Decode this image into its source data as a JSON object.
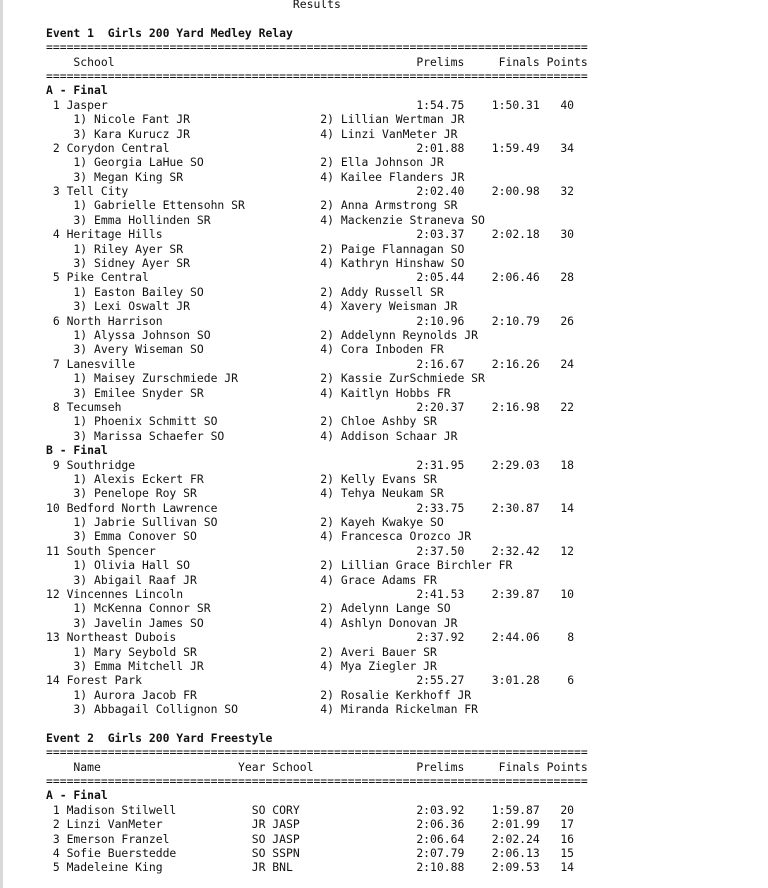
{
  "title": "Results",
  "separator": "===============================================================================",
  "events": [
    {
      "title": "Event 1  Girls 200 Yard Medley Relay",
      "type": "relay",
      "columns": {
        "school": "School",
        "prelims": "Prelims",
        "finals": "Finals",
        "points": "Points"
      },
      "sections": [
        {
          "label": "A - Final",
          "entries": [
            {
              "place": "1",
              "team": "Jasper",
              "prelims": "1:54.75",
              "finals": "1:50.31",
              "points": "40",
              "swimmers": [
                "1) Nicole Fant JR",
                "2) Lillian Wertman JR",
                "3) Kara Kurucz JR",
                "4) Linzi VanMeter JR"
              ]
            },
            {
              "place": "2",
              "team": "Corydon Central",
              "prelims": "2:01.88",
              "finals": "1:59.49",
              "points": "34",
              "swimmers": [
                "1) Georgia LaHue SO",
                "2) Ella Johnson JR",
                "3) Megan King SR",
                "4) Kailee Flanders JR"
              ]
            },
            {
              "place": "3",
              "team": "Tell City",
              "prelims": "2:02.40",
              "finals": "2:00.98",
              "points": "32",
              "swimmers": [
                "1) Gabrielle Ettensohn SR",
                "2) Anna Armstrong SR",
                "3) Emma Hollinden SR",
                "4) Mackenzie Straneva SO"
              ]
            },
            {
              "place": "4",
              "team": "Heritage Hills",
              "prelims": "2:03.37",
              "finals": "2:02.18",
              "points": "30",
              "swimmers": [
                "1) Riley Ayer SR",
                "2) Paige Flannagan SO",
                "3) Sidney Ayer SR",
                "4) Kathryn Hinshaw SO"
              ]
            },
            {
              "place": "5",
              "team": "Pike Central",
              "prelims": "2:05.44",
              "finals": "2:06.46",
              "points": "28",
              "swimmers": [
                "1) Easton Bailey SO",
                "2) Addy Russell SR",
                "3) Lexi Oswalt JR",
                "4) Xavery Weisman JR"
              ]
            },
            {
              "place": "6",
              "team": "North Harrison",
              "prelims": "2:10.96",
              "finals": "2:10.79",
              "points": "26",
              "swimmers": [
                "1) Alyssa Johnson SO",
                "2) Addelynn Reynolds JR",
                "3) Avery Wiseman SO",
                "4) Cora Inboden FR"
              ]
            },
            {
              "place": "7",
              "team": "Lanesville",
              "prelims": "2:16.67",
              "finals": "2:16.26",
              "points": "24",
              "swimmers": [
                "1) Maisey Zurschmiede JR",
                "2) Kassie ZurSchmiede SR",
                "3) Emilee Snyder SR",
                "4) Kaitlyn Hobbs FR"
              ]
            },
            {
              "place": "8",
              "team": "Tecumseh",
              "prelims": "2:20.37",
              "finals": "2:16.98",
              "points": "22",
              "swimmers": [
                "1) Phoenix Schmitt SO",
                "2) Chloe Ashby SR",
                "3) Marissa Schaefer SO",
                "4) Addison Schaar JR"
              ]
            }
          ]
        },
        {
          "label": "B - Final",
          "entries": [
            {
              "place": "9",
              "team": "Southridge",
              "prelims": "2:31.95",
              "finals": "2:29.03",
              "points": "18",
              "swimmers": [
                "1) Alexis Eckert FR",
                "2) Kelly Evans SR",
                "3) Penelope Roy SR",
                "4) Tehya Neukam SR"
              ]
            },
            {
              "place": "10",
              "team": "Bedford North Lawrence",
              "prelims": "2:33.75",
              "finals": "2:30.87",
              "points": "14",
              "swimmers": [
                "1) Jabrie Sullivan SO",
                "2) Kayeh Kwakye SO",
                "3) Emma Conover SO",
                "4) Francesca Orozco JR"
              ]
            },
            {
              "place": "11",
              "team": "South Spencer",
              "prelims": "2:37.50",
              "finals": "2:32.42",
              "points": "12",
              "swimmers": [
                "1) Olivia Hall SO",
                "2) Lillian Grace Birchler FR",
                "3) Abigail Raaf JR",
                "4) Grace Adams FR"
              ]
            },
            {
              "place": "12",
              "team": "Vincennes Lincoln",
              "prelims": "2:41.53",
              "finals": "2:39.87",
              "points": "10",
              "swimmers": [
                "1) McKenna Connor SR",
                "2) Adelynn Lange SO",
                "3) Javelin James SO",
                "4) Ashlyn Donovan JR"
              ]
            },
            {
              "place": "13",
              "team": "Northeast Dubois",
              "prelims": "2:37.92",
              "finals": "2:44.06",
              "points": "8",
              "swimmers": [
                "1) Mary Seybold SR",
                "2) Averi Bauer SR",
                "3) Emma Mitchell JR",
                "4) Mya Ziegler JR"
              ]
            },
            {
              "place": "14",
              "team": "Forest Park",
              "prelims": "2:55.27",
              "finals": "3:01.28",
              "points": "6",
              "swimmers": [
                "1) Aurora Jacob FR",
                "2) Rosalie Kerkhoff JR",
                "3) Abbagail Collignon SO",
                "4) Miranda Rickelman FR"
              ]
            }
          ]
        }
      ]
    },
    {
      "title": "Event 2  Girls 200 Yard Freestyle",
      "type": "individual",
      "columns": {
        "name": "Name",
        "year": "Year",
        "school": "School",
        "prelims": "Prelims",
        "finals": "Finals",
        "points": "Points"
      },
      "sections": [
        {
          "label": "A - Final",
          "entries": [
            {
              "place": "1",
              "name": "Madison Stilwell",
              "year": "SO",
              "school": "CORY",
              "prelims": "2:03.92",
              "finals": "1:59.87",
              "points": "20"
            },
            {
              "place": "2",
              "name": "Linzi VanMeter",
              "year": "JR",
              "school": "JASP",
              "prelims": "2:06.36",
              "finals": "2:01.99",
              "points": "17"
            },
            {
              "place": "3",
              "name": "Emerson Franzel",
              "year": "SO",
              "school": "JASP",
              "prelims": "2:06.64",
              "finals": "2:02.24",
              "points": "16"
            },
            {
              "place": "4",
              "name": "Sofie Buerstedde",
              "year": "SO",
              "school": "SSPN",
              "prelims": "2:07.79",
              "finals": "2:06.13",
              "points": "15"
            },
            {
              "place": "5",
              "name": "Madeleine King",
              "year": "JR",
              "school": "BNL",
              "prelims": "2:10.88",
              "finals": "2:09.53",
              "points": "14"
            }
          ]
        }
      ]
    }
  ]
}
